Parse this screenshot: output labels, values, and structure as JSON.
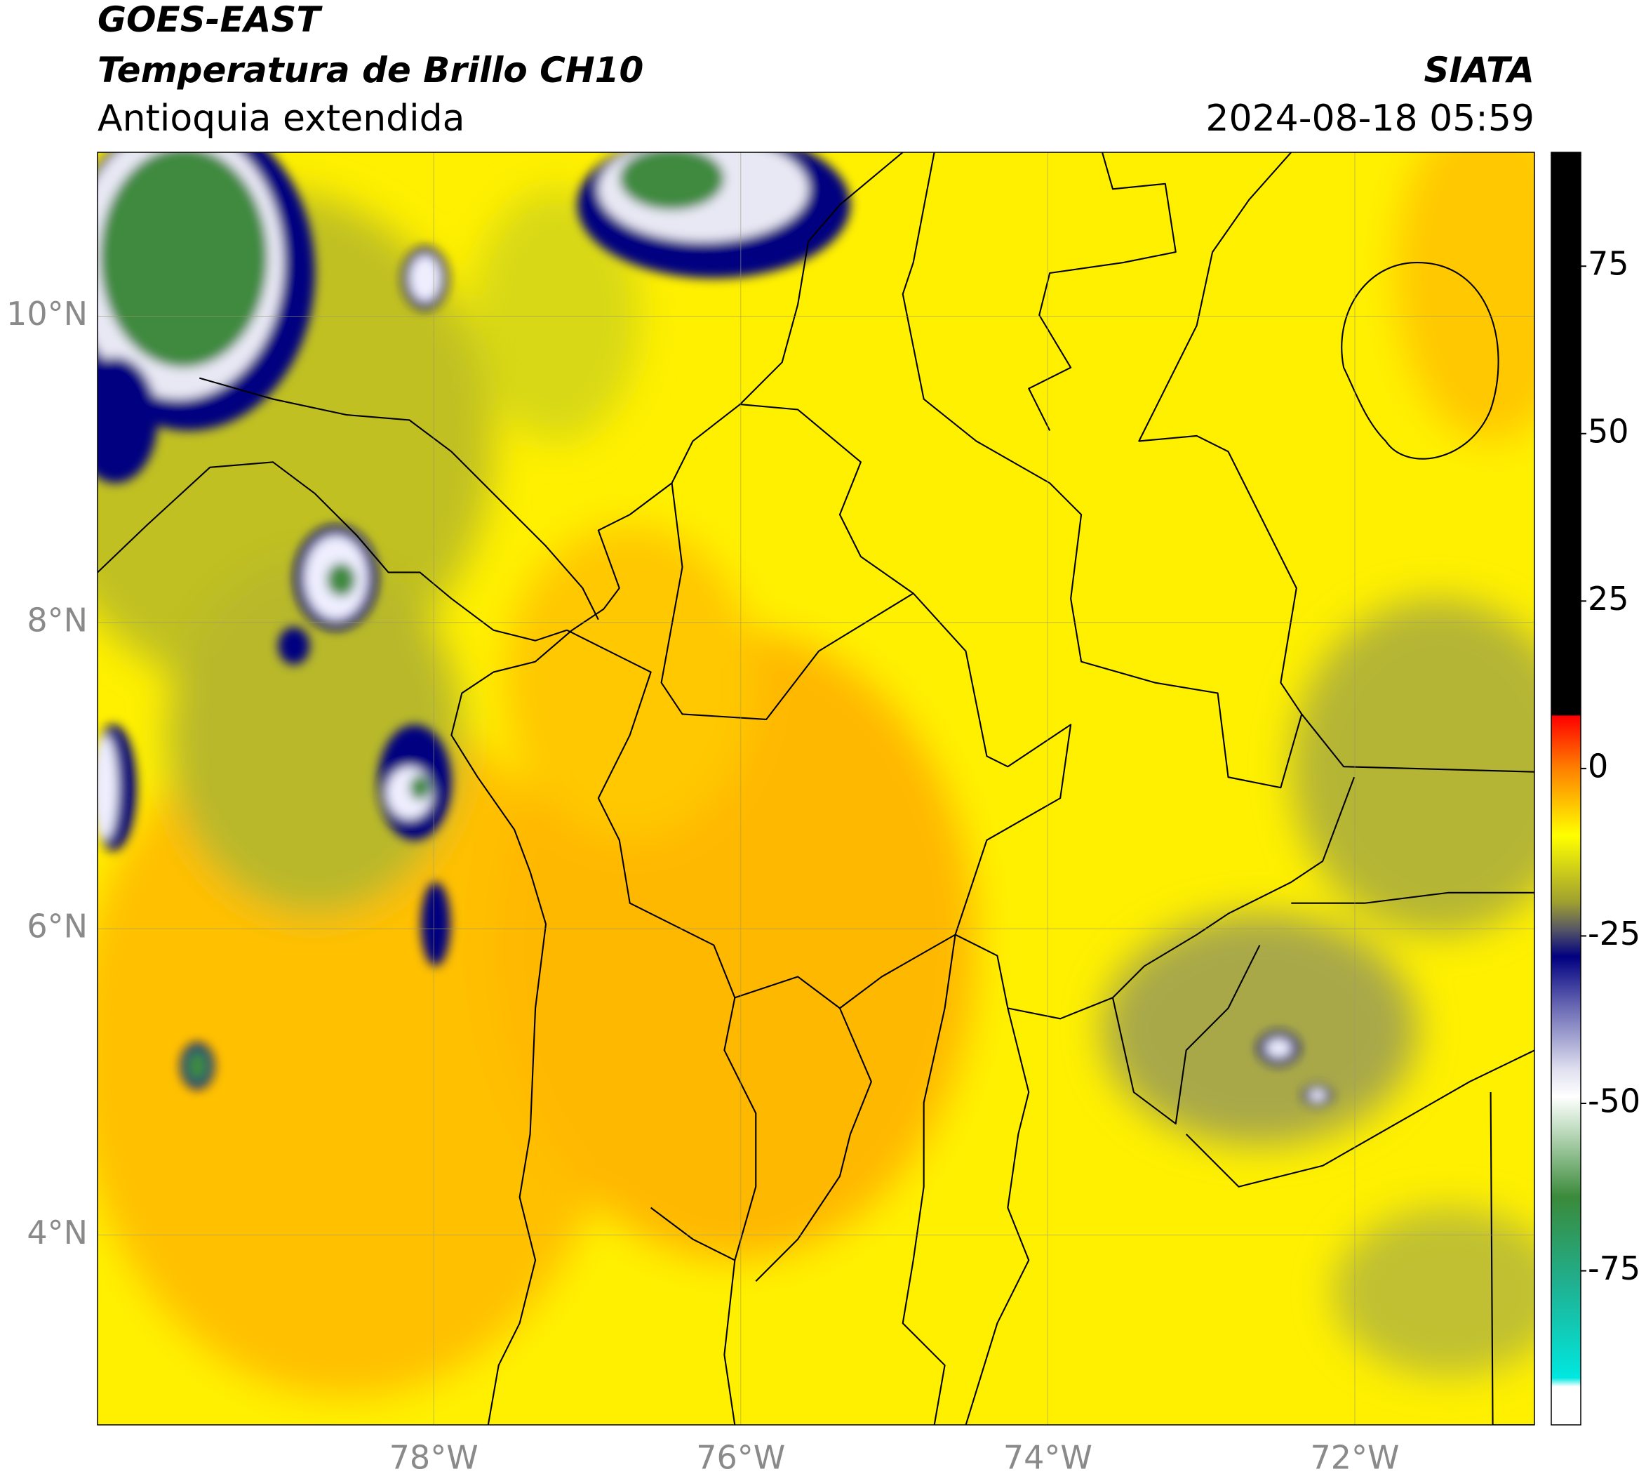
{
  "header": {
    "title": "GOES-EAST",
    "subtitle": "Temperatura de Brillo CH10",
    "region": "Antioquia extendida",
    "source": "SIATA",
    "datetime": "2024-08-18 05:59"
  },
  "map": {
    "xlim": [
      -80.19,
      -70.83
    ],
    "ylim": [
      2.76,
      11.07
    ],
    "xticks": [
      {
        "value": -78,
        "label": "78°W"
      },
      {
        "value": -76,
        "label": "76°W"
      },
      {
        "value": -74,
        "label": "74°W"
      },
      {
        "value": -72,
        "label": "72°W"
      }
    ],
    "yticks": [
      {
        "value": 10,
        "label": "10°N"
      },
      {
        "value": 8,
        "label": "8°N"
      },
      {
        "value": 6,
        "label": "6°N"
      },
      {
        "value": 4,
        "label": "4°N"
      }
    ],
    "grid": true
  },
  "colorbar": {
    "lim": [
      -98,
      92
    ],
    "ticks": [
      75,
      50,
      25,
      0,
      -25,
      -50,
      -75
    ]
  }
}
